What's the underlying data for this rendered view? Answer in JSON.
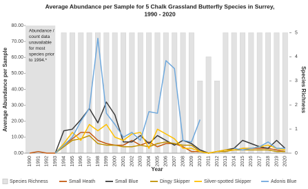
{
  "chart_data": {
    "type": "combo",
    "title": [
      "Average Abundance per Sample for 5 Chalk Grassland Butterfly Species in Surrey,",
      "1990 - 2020"
    ],
    "y_label": "Average Abundance per Sample",
    "y2_label": "Species Richness",
    "x_label": "Year",
    "annotation": [
      "Abundance /",
      "count data",
      "unavailable",
      "for most",
      "species prior",
      "to 1994.*"
    ],
    "categories": [
      "1990",
      "1991",
      "1992",
      "1993",
      "1994",
      "1995",
      "1996",
      "1997",
      "1998",
      "1999",
      "2000",
      "2001",
      "2002",
      "2003",
      "2004",
      "2005",
      "2006",
      "2007",
      "2008",
      "2009",
      "2010",
      "2011",
      "2012",
      "2013",
      "2014",
      "2015",
      "2016",
      "2017",
      "2018",
      "2019",
      "2020"
    ],
    "ylim": [
      0,
      80
    ],
    "yticks": [
      {
        "value": 0,
        "label": "0.00"
      },
      {
        "value": 10,
        "label": "10.00"
      },
      {
        "value": 20,
        "label": "20.00"
      },
      {
        "value": 30,
        "label": "30.00"
      },
      {
        "value": 40,
        "label": "40.00"
      },
      {
        "value": 50,
        "label": "50.00"
      },
      {
        "value": 60,
        "label": "60.00"
      },
      {
        "value": 70,
        "label": "70.00"
      },
      {
        "value": 80,
        "label": "80.00"
      }
    ],
    "y2lim": [
      0,
      5.3
    ],
    "y2ticks": [
      0,
      1,
      2,
      3,
      4,
      5
    ],
    "series": [
      {
        "name": "Species Richness",
        "type": "bar",
        "axis": "y2",
        "color": "#e2e2e2",
        "values": [
          null,
          null,
          null,
          null,
          5,
          5,
          5,
          5,
          5,
          5,
          5,
          5,
          5,
          5,
          5,
          5,
          5,
          5,
          5,
          5,
          3,
          4,
          3,
          5,
          5,
          5,
          5,
          5,
          5,
          5,
          5
        ]
      },
      {
        "name": "Small Heath",
        "type": "line",
        "color": "#c55a11",
        "values": [
          0,
          1,
          0,
          0,
          5,
          9,
          13,
          13,
          8,
          6,
          5,
          5,
          8,
          5,
          7,
          4,
          6,
          6,
          4,
          1,
          1,
          0,
          1,
          2,
          2,
          3,
          3,
          3,
          3,
          2,
          1
        ]
      },
      {
        "name": "Small Blue",
        "type": "line",
        "color": "#3a3a3a",
        "values": [
          null,
          null,
          null,
          0,
          14,
          15,
          21,
          28,
          19,
          32,
          24,
          7,
          7,
          11,
          6,
          11,
          8,
          5,
          8,
          6,
          2,
          0,
          1,
          2,
          3,
          8,
          6,
          4,
          3,
          8,
          3
        ]
      },
      {
        "name": "Dingy Skipper",
        "type": "line",
        "color": "#bf9000",
        "values": [
          null,
          null,
          null,
          0,
          4,
          8,
          9,
          11,
          6,
          5,
          5,
          4,
          4,
          5,
          4,
          6,
          7,
          6,
          5,
          5,
          1,
          0,
          1,
          1,
          2,
          2,
          2,
          2,
          2,
          1,
          1
        ]
      },
      {
        "name": "Silver-spotted Skipper",
        "type": "line",
        "color": "#ffc000",
        "values": [
          null,
          null,
          null,
          0,
          6,
          13,
          8,
          18,
          14,
          18,
          10,
          8,
          12,
          13,
          3,
          15,
          12,
          9,
          3,
          3,
          1,
          0,
          1,
          2,
          2,
          3,
          3,
          4,
          5,
          3,
          2
        ]
      },
      {
        "name": "Adonis Blue",
        "type": "line",
        "color": "#6fa8dc",
        "values": [
          null,
          null,
          null,
          0,
          5,
          10,
          20,
          28,
          72,
          25,
          18,
          10,
          13,
          8,
          26,
          25,
          58,
          53,
          8,
          7,
          21,
          null,
          null,
          null,
          3,
          2,
          3,
          4,
          7,
          3,
          3
        ]
      }
    ]
  }
}
